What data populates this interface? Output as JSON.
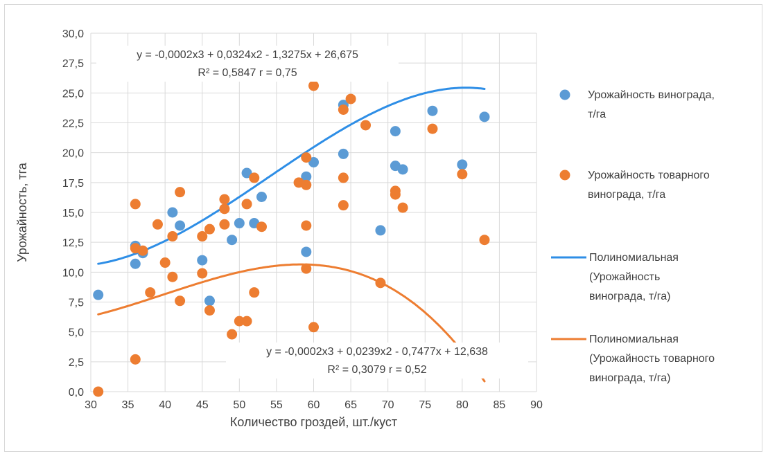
{
  "chart_data": {
    "type": "scatter",
    "title": "",
    "xlabel": "Количество гроздей, шт./куст",
    "ylabel": "Урожайность, тга",
    "xlim": [
      30,
      90
    ],
    "ylim": [
      0,
      30
    ],
    "x_ticks": [
      "30",
      "35",
      "40",
      "45",
      "50",
      "55",
      "60",
      "65",
      "70",
      "75",
      "80",
      "85",
      "90"
    ],
    "y_ticks": [
      "0,0",
      "2,5",
      "5,0",
      "7,5",
      "10,0",
      "12,5",
      "15,0",
      "17,5",
      "20,0",
      "22,5",
      "25,0",
      "27,5",
      "30,0"
    ],
    "grid": true,
    "legend_position": "right",
    "colors": {
      "blue": "#5b9bd5",
      "orange": "#ed7d31",
      "blue_line": "#2e8ee6",
      "orange_line": "#ed7d31"
    },
    "series": [
      {
        "name": "Урожайность винограда, т/га",
        "name_lines": [
          "Урожайность винограда,",
          "т/га"
        ],
        "marker": "circle",
        "color": "#5b9bd5",
        "points": [
          [
            31,
            8.1
          ],
          [
            36,
            12.2
          ],
          [
            36,
            10.7
          ],
          [
            37,
            11.6
          ],
          [
            41,
            15.0
          ],
          [
            42,
            13.9
          ],
          [
            45,
            11.0
          ],
          [
            46,
            7.6
          ],
          [
            49,
            12.7
          ],
          [
            50,
            14.1
          ],
          [
            51,
            18.3
          ],
          [
            52,
            14.1
          ],
          [
            53,
            16.3
          ],
          [
            59,
            11.7
          ],
          [
            59,
            18.0
          ],
          [
            60,
            19.2
          ],
          [
            64,
            19.9
          ],
          [
            64,
            24.0
          ],
          [
            69,
            13.5
          ],
          [
            71,
            21.8
          ],
          [
            71,
            18.9
          ],
          [
            72,
            18.6
          ],
          [
            76,
            23.5
          ],
          [
            80,
            19.0
          ],
          [
            83,
            23.0
          ]
        ]
      },
      {
        "name": "Урожайность товарного винограда, т/га",
        "name_lines": [
          "Урожайность товарного",
          "винограда, т/га"
        ],
        "marker": "circle",
        "color": "#ed7d31",
        "points": [
          [
            31,
            0.0
          ],
          [
            36,
            15.7
          ],
          [
            36,
            12.0
          ],
          [
            36,
            2.7
          ],
          [
            37,
            11.8
          ],
          [
            38,
            8.3
          ],
          [
            39,
            14.0
          ],
          [
            40,
            10.8
          ],
          [
            41,
            13.0
          ],
          [
            41,
            9.6
          ],
          [
            42,
            16.7
          ],
          [
            42,
            7.6
          ],
          [
            45,
            13.0
          ],
          [
            45,
            9.9
          ],
          [
            46,
            13.6
          ],
          [
            46,
            6.8
          ],
          [
            48,
            16.1
          ],
          [
            48,
            15.3
          ],
          [
            48,
            14.0
          ],
          [
            49,
            4.8
          ],
          [
            50,
            5.9
          ],
          [
            51,
            15.7
          ],
          [
            51,
            5.9
          ],
          [
            52,
            17.9
          ],
          [
            52,
            8.3
          ],
          [
            53,
            13.8
          ],
          [
            58,
            17.5
          ],
          [
            59,
            19.6
          ],
          [
            59,
            17.3
          ],
          [
            59,
            13.9
          ],
          [
            59,
            10.3
          ],
          [
            60,
            25.6
          ],
          [
            60,
            5.4
          ],
          [
            64,
            23.6
          ],
          [
            64,
            17.9
          ],
          [
            64,
            15.6
          ],
          [
            65,
            24.5
          ],
          [
            67,
            22.3
          ],
          [
            69,
            9.1
          ],
          [
            71,
            16.8
          ],
          [
            71,
            16.5
          ],
          [
            72,
            15.4
          ],
          [
            76,
            22.0
          ],
          [
            80,
            18.2
          ],
          [
            83,
            12.7
          ]
        ]
      }
    ],
    "trendlines": [
      {
        "type": "polynomial",
        "name": "Полиномиальная (Урожайность винограда, т/га)",
        "name_lines": [
          "Полиномиальная",
          "(Урожайность",
          "винограда, т/га)"
        ],
        "color": "#2e8ee6",
        "coefficients": [
          -0.0002,
          0.0324,
          -1.3275,
          26.675
        ],
        "x_range": [
          31,
          83
        ],
        "equation": "y = -0,0002x3 + 0,0324x2 - 1,3275x + 26,675",
        "r2_text": "R² = 0,5847   r = 0,75"
      },
      {
        "type": "polynomial",
        "name": "Полиномиальная (Урожайность товарного винограда, т/га)",
        "name_lines": [
          "Полиномиальная",
          "(Урожайность товарного",
          "винограда, т/га)"
        ],
        "color": "#ed7d31",
        "coefficients": [
          -0.0002,
          0.0239,
          -0.7477,
          12.638
        ],
        "x_range": [
          31,
          83
        ],
        "equation": "y = -0,0002x3 + 0,0239x2 - 0,7477x + 12,638",
        "r2_text": "R² = 0,3079   r = 0,52"
      }
    ]
  }
}
